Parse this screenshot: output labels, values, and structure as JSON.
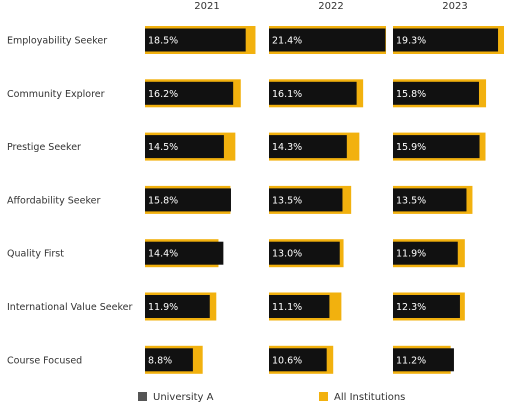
{
  "chart_data": {
    "type": "bar",
    "orientation": "horizontal",
    "columns": [
      "2021",
      "2022",
      "2023"
    ],
    "categories": [
      "Employability Seeker",
      "Community Explorer",
      "Prestige Seeker",
      "Affordability Seeker",
      "Quality First",
      "International Value Seeker",
      "Course Focused"
    ],
    "series": [
      {
        "name": "University A",
        "color": "#111111",
        "values": [
          [
            18.5,
            21.4,
            19.3
          ],
          [
            16.2,
            16.1,
            15.8
          ],
          [
            14.5,
            14.3,
            15.9
          ],
          [
            15.8,
            13.5,
            13.5
          ],
          [
            14.4,
            13.0,
            11.9
          ],
          [
            11.9,
            11.1,
            12.3
          ],
          [
            8.8,
            10.6,
            11.2
          ]
        ],
        "labels": [
          [
            "18.5%",
            "21.4%",
            "19.3%"
          ],
          [
            "16.2%",
            "16.1%",
            "15.8%"
          ],
          [
            "14.5%",
            "14.3%",
            "15.9%"
          ],
          [
            "15.8%",
            "13.5%",
            "13.5%"
          ],
          [
            "14.4%",
            "13.0%",
            "11.9%"
          ],
          [
            "11.9%",
            "11.1%",
            "12.3%"
          ],
          [
            "8.8%",
            "10.6%",
            "11.2%"
          ]
        ]
      },
      {
        "name": "All Institutions",
        "color": "#F2B10E",
        "values": [
          [
            20.3,
            21.5,
            20.4
          ],
          [
            17.6,
            17.3,
            17.1
          ],
          [
            16.6,
            16.6,
            17.0
          ],
          [
            15.7,
            15.1,
            14.6
          ],
          [
            13.5,
            13.7,
            13.2
          ],
          [
            13.1,
            13.3,
            13.2
          ],
          [
            10.6,
            11.8,
            10.6
          ]
        ]
      }
    ],
    "xlim": [
      0,
      21.5
    ],
    "legend_position": "bottom",
    "grid": false
  }
}
